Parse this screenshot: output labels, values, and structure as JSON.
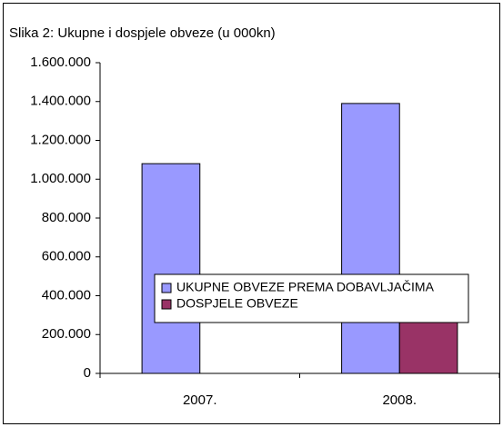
{
  "chart_data": {
    "type": "bar",
    "title": "Slika 2: Ukupne i dospjele obveze (u 000kn)",
    "categories": [
      "2007.",
      "2008."
    ],
    "series": [
      {
        "name": "UKUPNE OBVEZE PREMA DOBAVLJAČIMA",
        "color": "#9999ff",
        "values": [
          1080000,
          1390000
        ]
      },
      {
        "name": "DOSPJELE OBVEZE",
        "color": "#993366",
        "values": [
          0,
          300000
        ]
      }
    ],
    "ylim": [
      0,
      1600000
    ],
    "yticks": [
      0,
      {
        "value": 200000,
        "label": "200.000"
      },
      {
        "value": 400000,
        "label": "400.000"
      },
      {
        "value": 600000,
        "label": "600.000"
      },
      {
        "value": 800000,
        "label": "800.000"
      },
      {
        "value": 1000000,
        "label": "1.000.000"
      },
      {
        "value": 1200000,
        "label": "1.200.000"
      },
      {
        "value": 1400000,
        "label": "1.400.000"
      },
      {
        "value": 1600000,
        "label": "1.600.000"
      }
    ],
    "grid": false
  }
}
